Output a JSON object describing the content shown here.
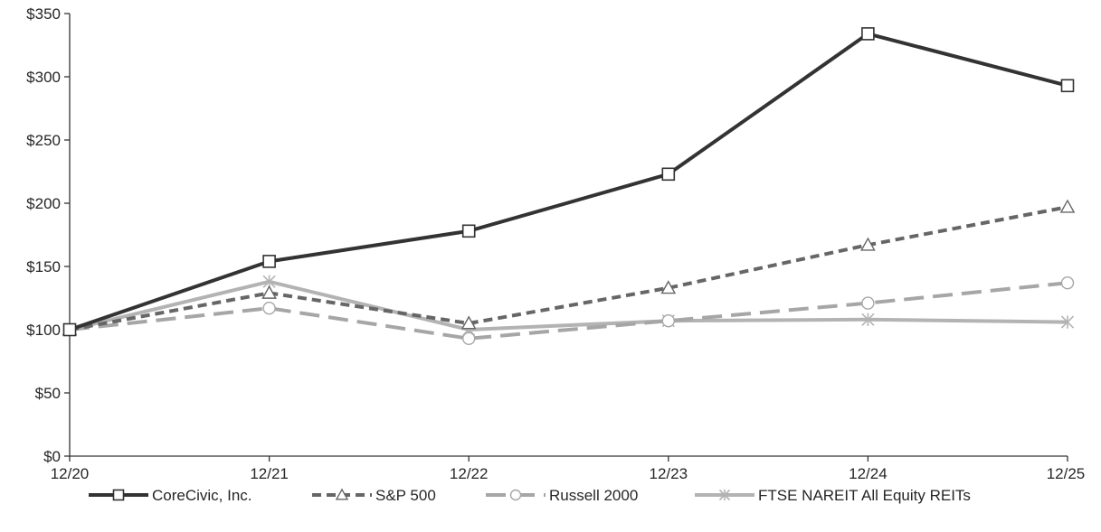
{
  "chart_data": {
    "type": "line",
    "title": "",
    "xlabel": "",
    "ylabel": "",
    "x": [
      "12/20",
      "12/21",
      "12/22",
      "12/23",
      "12/24",
      "12/25"
    ],
    "ylim": [
      0,
      350
    ],
    "yticks": [
      0,
      50,
      100,
      150,
      200,
      250,
      300,
      350
    ],
    "ytick_labels": [
      "$0",
      "$50",
      "$100",
      "$150",
      "$200",
      "$250",
      "$300",
      "$350"
    ],
    "grid": false,
    "legend_position": "bottom",
    "series": [
      {
        "name": "CoreCivic, Inc.",
        "values": [
          100,
          154,
          178,
          223,
          334,
          293
        ],
        "color": "#333333",
        "dash": "solid",
        "marker": "square"
      },
      {
        "name": "S&P 500",
        "values": [
          100,
          129,
          105,
          133,
          167,
          197
        ],
        "color": "#666666",
        "dash": "dashed",
        "marker": "triangle"
      },
      {
        "name": "Russell 2000",
        "values": [
          100,
          117,
          93,
          107,
          121,
          137
        ],
        "color": "#a6a6a6",
        "dash": "longdash",
        "marker": "circle"
      },
      {
        "name": "FTSE NAREIT All Equity REITs",
        "values": [
          100,
          138,
          100,
          107,
          108,
          106
        ],
        "color": "#b3b3b3",
        "dash": "solid",
        "marker": "asterisk"
      }
    ]
  }
}
